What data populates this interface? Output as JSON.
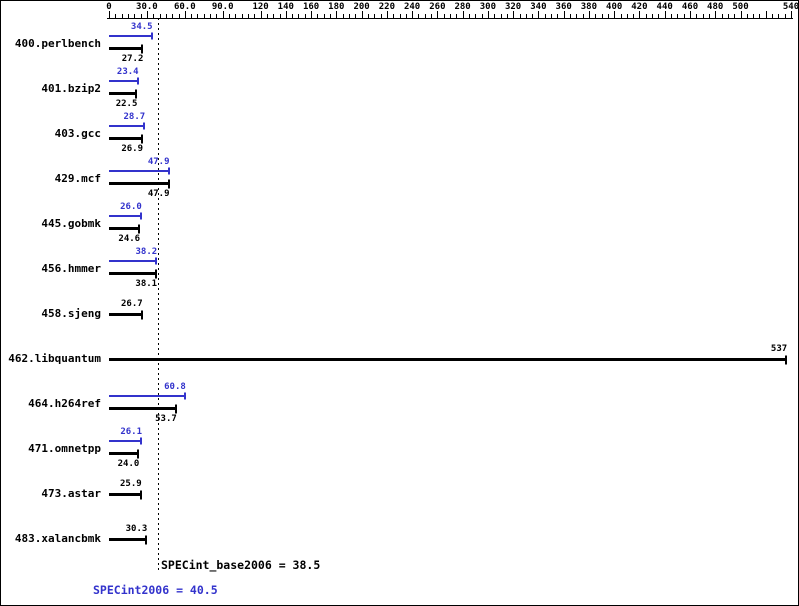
{
  "chart_data": {
    "type": "bar",
    "orientation": "horizontal",
    "title": "",
    "xlabel": "",
    "ylabel": "",
    "grid": false,
    "legend_position": "none",
    "axis": {
      "xlim": [
        0,
        540
      ],
      "position": "top",
      "ticks": [
        {
          "label": "0",
          "value": 0
        },
        {
          "label": "30.0",
          "value": 30
        },
        {
          "label": "60.0",
          "value": 60
        },
        {
          "label": "90.0",
          "value": 90
        },
        {
          "label": "120",
          "value": 120
        },
        {
          "label": "140",
          "value": 140
        },
        {
          "label": "160",
          "value": 160
        },
        {
          "label": "180",
          "value": 180
        },
        {
          "label": "200",
          "value": 200
        },
        {
          "label": "220",
          "value": 220
        },
        {
          "label": "240",
          "value": 240
        },
        {
          "label": "260",
          "value": 260
        },
        {
          "label": "280",
          "value": 280
        },
        {
          "label": "300",
          "value": 300
        },
        {
          "label": "320",
          "value": 320
        },
        {
          "label": "340",
          "value": 340
        },
        {
          "label": "360",
          "value": 360
        },
        {
          "label": "380",
          "value": 380
        },
        {
          "label": "400",
          "value": 400
        },
        {
          "label": "420",
          "value": 420
        },
        {
          "label": "440",
          "value": 440
        },
        {
          "label": "460",
          "value": 460
        },
        {
          "label": "480",
          "value": 480
        },
        {
          "label": "500",
          "value": 500
        },
        {
          "label": "540",
          "value": 540
        }
      ],
      "unlabeled_major_ticks": [
        520
      ]
    },
    "series_names": {
      "peak": "SPECint2006",
      "base": "SPECint_base2006"
    },
    "benchmarks": [
      {
        "name": "400.perlbench",
        "peak": 34.5,
        "peak_label": "34.5",
        "base": 27.2,
        "base_label": "27.2"
      },
      {
        "name": "401.bzip2",
        "peak": 23.4,
        "peak_label": "23.4",
        "base": 22.5,
        "base_label": "22.5"
      },
      {
        "name": "403.gcc",
        "peak": 28.7,
        "peak_label": "28.7",
        "base": 26.9,
        "base_label": "26.9"
      },
      {
        "name": "429.mcf",
        "peak": 47.9,
        "peak_label": "47.9",
        "base": 47.9,
        "base_label": "47.9"
      },
      {
        "name": "445.gobmk",
        "peak": 26.0,
        "peak_label": "26.0",
        "base": 24.6,
        "base_label": "24.6"
      },
      {
        "name": "456.hmmer",
        "peak": 38.2,
        "peak_label": "38.2",
        "base": 38.1,
        "base_label": "38.1"
      },
      {
        "name": "458.sjeng",
        "peak": null,
        "peak_label": null,
        "base": 26.7,
        "base_label": "26.7"
      },
      {
        "name": "462.libquantum",
        "peak": null,
        "peak_label": null,
        "base": 537,
        "base_label": "537"
      },
      {
        "name": "464.h264ref",
        "peak": 60.8,
        "peak_label": "60.8",
        "base": 53.7,
        "base_label": "53.7"
      },
      {
        "name": "471.omnetpp",
        "peak": 26.1,
        "peak_label": "26.1",
        "base": 24.0,
        "base_label": "24.0"
      },
      {
        "name": "473.astar",
        "peak": null,
        "peak_label": null,
        "base": 25.9,
        "base_label": "25.9"
      },
      {
        "name": "483.xalancbmk",
        "peak": null,
        "peak_label": null,
        "base": 30.3,
        "base_label": "30.3"
      }
    ],
    "reference_line_value": 38.5,
    "summary": {
      "base_text": "SPECint_base2006 = 38.5",
      "peak_text": "SPECint2006 = 40.5",
      "base_value": 38.5,
      "peak_value": 40.5
    },
    "colors": {
      "peak": "#3333cc",
      "base": "#000000",
      "background": "#ffffff"
    }
  }
}
